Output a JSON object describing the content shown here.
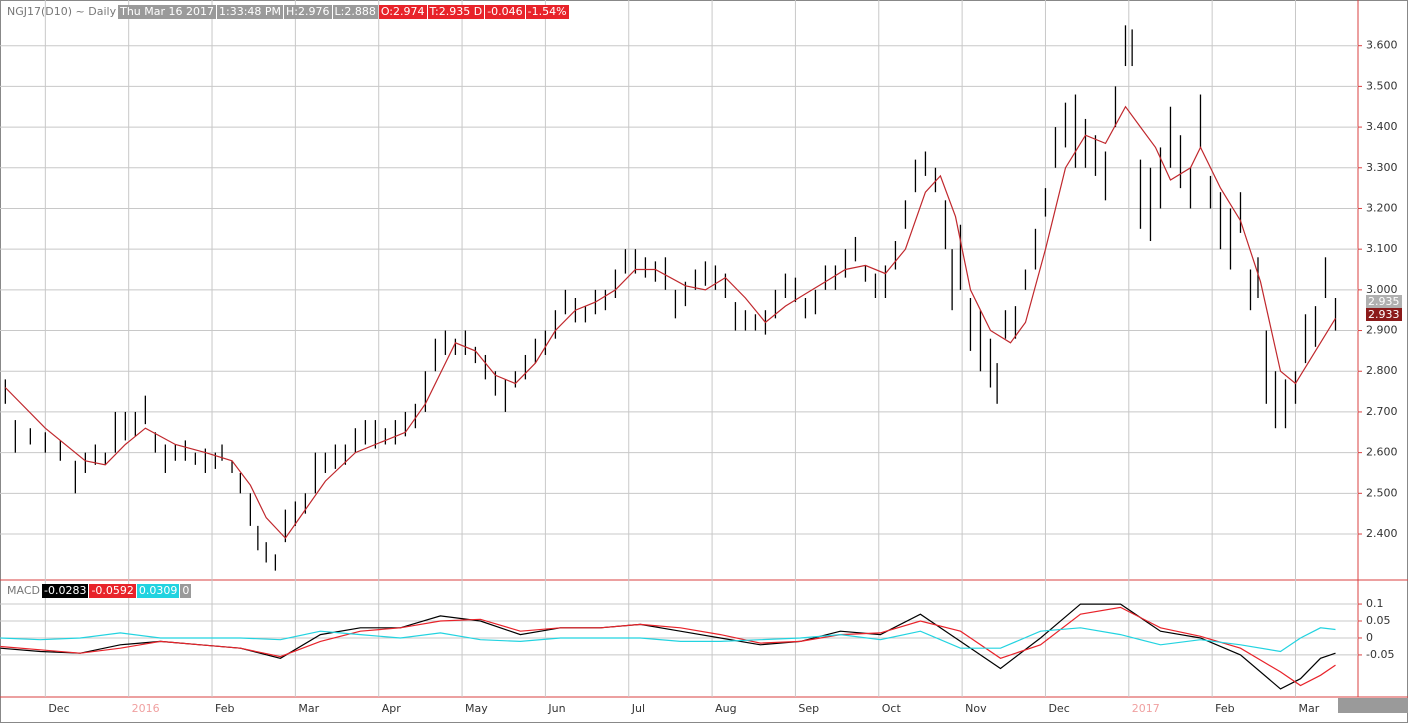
{
  "chart_data": [
    {
      "type": "ohlc",
      "title": "NGJ17(D10) ~ Daily",
      "header": [
        "Thu Mar 16 2017",
        "1:33:48 PM",
        "H:2.976",
        "L:2.888"
      ],
      "quote": [
        "O:2.974",
        "T:2.935 D",
        "-0.046",
        "-1.54%"
      ],
      "last_labels": [
        2.935,
        2.933
      ],
      "color": "#000000",
      "ma_color": "#c0282d",
      "xlim": [
        0.456,
        16.75
      ],
      "xticks": [
        {
          "value": 1,
          "label": "Dec"
        },
        {
          "value": 2,
          "label": "2016"
        },
        {
          "value": 3,
          "label": "Feb"
        },
        {
          "value": 4,
          "label": "Mar"
        },
        {
          "value": 5,
          "label": "Apr"
        },
        {
          "value": 6,
          "label": "May"
        },
        {
          "value": 7,
          "label": "Jun"
        },
        {
          "value": 8,
          "label": "Jul"
        },
        {
          "value": 9,
          "label": "Aug"
        },
        {
          "value": 10,
          "label": "Sep"
        },
        {
          "value": 11,
          "label": "Oct"
        },
        {
          "value": 12,
          "label": "Nov"
        },
        {
          "value": 13,
          "label": "Dec"
        },
        {
          "value": 14,
          "label": "2017"
        },
        {
          "value": 15,
          "label": "Feb"
        },
        {
          "value": 16,
          "label": "Mar"
        }
      ],
      "ylim": [
        2.287,
        3.7
      ],
      "yticks": [
        {
          "value": 2.4,
          "label": "2.400"
        },
        {
          "value": 2.5,
          "label": "2.500"
        },
        {
          "value": 2.6,
          "label": "2.600"
        },
        {
          "value": 2.7,
          "label": "2.700"
        },
        {
          "value": 2.8,
          "label": "2.800"
        },
        {
          "value": 2.9,
          "label": "2.900"
        },
        {
          "value": 3.0,
          "label": "3.000"
        },
        {
          "value": 3.1,
          "label": "3.100"
        },
        {
          "value": 3.2,
          "label": "3.200"
        },
        {
          "value": 3.3,
          "label": "3.300"
        },
        {
          "value": 3.4,
          "label": "3.400"
        },
        {
          "value": 3.5,
          "label": "3.500"
        },
        {
          "value": 3.6,
          "label": "3.600"
        }
      ],
      "grid": true,
      "x": [
        0.52,
        0.64,
        0.82,
        1.0,
        1.18,
        1.36,
        1.48,
        1.6,
        1.72,
        1.84,
        1.96,
        2.08,
        2.2,
        2.32,
        2.44,
        2.56,
        2.68,
        2.8,
        2.92,
        3.04,
        3.12,
        3.24,
        3.34,
        3.46,
        3.55,
        3.65,
        3.76,
        3.88,
        4.0,
        4.12,
        4.24,
        4.36,
        4.48,
        4.6,
        4.72,
        4.84,
        4.96,
        5.08,
        5.2,
        5.32,
        5.44,
        5.56,
        5.68,
        5.8,
        5.92,
        6.04,
        6.16,
        6.28,
        6.4,
        6.52,
        6.64,
        6.76,
        6.88,
        7.0,
        7.12,
        7.24,
        7.36,
        7.48,
        7.6,
        7.72,
        7.84,
        7.96,
        8.08,
        8.2,
        8.32,
        8.44,
        8.56,
        8.68,
        8.8,
        8.92,
        9.04,
        9.16,
        9.28,
        9.4,
        9.52,
        9.64,
        9.76,
        9.88,
        10.0,
        10.12,
        10.24,
        10.36,
        10.48,
        10.6,
        10.72,
        10.84,
        10.96,
        11.08,
        11.2,
        11.32,
        11.44,
        11.56,
        11.68,
        11.8,
        11.88,
        11.98,
        12.1,
        12.22,
        12.34,
        12.42,
        12.52,
        12.64,
        12.76,
        12.88,
        13.0,
        13.12,
        13.24,
        13.36,
        13.48,
        13.6,
        13.72,
        13.84,
        13.96,
        14.04,
        14.14,
        14.26,
        14.38,
        14.5,
        14.62,
        14.74,
        14.86,
        14.98,
        15.1,
        15.22,
        15.34,
        15.46,
        15.55,
        15.65,
        15.76,
        15.88,
        16.0,
        16.12,
        16.24,
        16.36,
        16.48
      ],
      "high": [
        2.78,
        2.68,
        2.66,
        2.65,
        2.63,
        2.58,
        2.6,
        2.62,
        2.6,
        2.7,
        2.7,
        2.7,
        2.74,
        2.65,
        2.62,
        2.62,
        2.63,
        2.6,
        2.61,
        2.6,
        2.62,
        2.58,
        2.55,
        2.5,
        2.42,
        2.38,
        2.35,
        2.46,
        2.48,
        2.5,
        2.6,
        2.6,
        2.62,
        2.62,
        2.66,
        2.68,
        2.68,
        2.66,
        2.68,
        2.7,
        2.72,
        2.8,
        2.88,
        2.9,
        2.88,
        2.9,
        2.86,
        2.84,
        2.8,
        2.78,
        2.8,
        2.84,
        2.88,
        2.9,
        2.95,
        3.0,
        2.98,
        2.96,
        3.0,
        3.0,
        3.05,
        3.1,
        3.1,
        3.08,
        3.07,
        3.08,
        3.0,
        3.02,
        3.05,
        3.07,
        3.06,
        3.04,
        2.97,
        2.95,
        2.94,
        2.95,
        3.0,
        3.04,
        3.03,
        2.98,
        3.0,
        3.06,
        3.06,
        3.1,
        3.13,
        3.06,
        3.04,
        3.06,
        3.12,
        3.22,
        3.32,
        3.34,
        3.3,
        3.22,
        3.1,
        3.16,
        2.98,
        2.95,
        2.88,
        2.82,
        2.95,
        2.96,
        3.05,
        3.15,
        3.25,
        3.4,
        3.46,
        3.48,
        3.42,
        3.38,
        3.34,
        3.5,
        3.65,
        3.64,
        3.32,
        3.3,
        3.35,
        3.45,
        3.38,
        3.3,
        3.48,
        3.28,
        3.24,
        3.2,
        3.24,
        3.05,
        3.08,
        2.9,
        2.8,
        2.78,
        2.8,
        2.94,
        2.96,
        3.08,
        2.98
      ],
      "low": [
        2.72,
        2.6,
        2.62,
        2.6,
        2.58,
        2.5,
        2.55,
        2.57,
        2.57,
        2.6,
        2.63,
        2.64,
        2.67,
        2.6,
        2.55,
        2.58,
        2.58,
        2.57,
        2.55,
        2.56,
        2.58,
        2.55,
        2.5,
        2.42,
        2.36,
        2.33,
        2.31,
        2.38,
        2.42,
        2.45,
        2.5,
        2.55,
        2.56,
        2.57,
        2.6,
        2.62,
        2.61,
        2.62,
        2.62,
        2.64,
        2.66,
        2.7,
        2.8,
        2.84,
        2.84,
        2.84,
        2.82,
        2.78,
        2.74,
        2.7,
        2.76,
        2.78,
        2.82,
        2.84,
        2.88,
        2.94,
        2.92,
        2.92,
        2.94,
        2.95,
        2.98,
        3.04,
        3.04,
        3.03,
        3.02,
        3.0,
        2.93,
        2.96,
        3.0,
        3.01,
        3.0,
        2.98,
        2.9,
        2.9,
        2.9,
        2.89,
        2.93,
        2.98,
        2.97,
        2.93,
        2.94,
        3.0,
        3.0,
        3.03,
        3.07,
        3.02,
        2.98,
        2.98,
        3.05,
        3.15,
        3.24,
        3.28,
        3.24,
        3.1,
        2.95,
        3.0,
        2.85,
        2.8,
        2.76,
        2.72,
        2.88,
        2.88,
        3.0,
        3.05,
        3.18,
        3.3,
        3.35,
        3.3,
        3.3,
        3.28,
        3.22,
        3.4,
        3.55,
        3.55,
        3.15,
        3.12,
        3.2,
        3.3,
        3.25,
        3.2,
        3.35,
        3.2,
        3.1,
        3.05,
        3.14,
        2.95,
        2.98,
        2.72,
        2.66,
        2.66,
        2.72,
        2.82,
        2.86,
        2.98,
        2.9
      ],
      "ma_x": [
        0.52,
        1.0,
        1.48,
        1.72,
        1.96,
        2.2,
        2.56,
        2.92,
        3.24,
        3.46,
        3.65,
        3.88,
        4.12,
        4.36,
        4.72,
        5.08,
        5.32,
        5.56,
        5.8,
        5.92,
        6.16,
        6.4,
        6.64,
        6.88,
        7.12,
        7.36,
        7.6,
        7.84,
        8.08,
        8.32,
        8.68,
        8.92,
        9.16,
        9.4,
        9.64,
        9.88,
        10.12,
        10.36,
        10.6,
        10.84,
        11.08,
        11.32,
        11.56,
        11.74,
        11.92,
        12.1,
        12.34,
        12.58,
        12.76,
        13.0,
        13.24,
        13.48,
        13.72,
        13.96,
        14.14,
        14.32,
        14.5,
        14.74,
        14.86,
        15.1,
        15.34,
        15.58,
        15.82,
        16.0,
        16.24,
        16.48
      ],
      "ma": [
        2.76,
        2.66,
        2.58,
        2.57,
        2.62,
        2.66,
        2.62,
        2.6,
        2.58,
        2.52,
        2.44,
        2.39,
        2.46,
        2.53,
        2.6,
        2.63,
        2.65,
        2.72,
        2.82,
        2.87,
        2.85,
        2.79,
        2.77,
        2.82,
        2.9,
        2.95,
        2.97,
        3.0,
        3.05,
        3.05,
        3.01,
        3.0,
        3.03,
        2.98,
        2.92,
        2.96,
        2.99,
        3.02,
        3.05,
        3.06,
        3.04,
        3.1,
        3.24,
        3.28,
        3.18,
        3.0,
        2.9,
        2.87,
        2.92,
        3.1,
        3.3,
        3.38,
        3.36,
        3.45,
        3.4,
        3.35,
        3.27,
        3.3,
        3.35,
        3.25,
        3.17,
        3.02,
        2.8,
        2.77,
        2.85,
        2.93
      ]
    },
    {
      "type": "line",
      "title": "MACD",
      "last_values": [
        -0.0283,
        -0.0592,
        0.0309
      ],
      "zero_label": 0,
      "xlim": [
        0.456,
        16.75
      ],
      "ylim": [
        -0.174,
        0.165
      ],
      "yticks": [
        0.1,
        0.05,
        0,
        -0.05
      ],
      "grid": true,
      "x": [
        0.46,
        0.94,
        1.42,
        1.9,
        2.38,
        2.86,
        3.34,
        3.82,
        4.3,
        4.78,
        5.26,
        5.74,
        6.22,
        6.7,
        7.18,
        7.66,
        8.14,
        8.62,
        9.1,
        9.58,
        10.06,
        10.54,
        11.02,
        11.5,
        11.98,
        12.46,
        12.94,
        13.42,
        13.9,
        14.38,
        14.86,
        15.34,
        15.82,
        16.06,
        16.3,
        16.48
      ],
      "series": [
        {
          "color": "#000000",
          "values": [
            -0.03,
            -0.04,
            -0.045,
            -0.02,
            -0.01,
            -0.02,
            -0.03,
            -0.06,
            0.01,
            0.03,
            0.03,
            0.065,
            0.05,
            0.01,
            0.03,
            0.03,
            0.04,
            0.02,
            0.0,
            -0.02,
            -0.01,
            0.02,
            0.01,
            0.07,
            -0.01,
            -0.09,
            0.0,
            0.1,
            0.1,
            0.02,
            0.0,
            -0.05,
            -0.15,
            -0.12,
            -0.06,
            -0.045
          ]
        },
        {
          "color": "#e8232a",
          "values": [
            -0.025,
            -0.035,
            -0.045,
            -0.03,
            -0.01,
            -0.02,
            -0.03,
            -0.055,
            -0.01,
            0.02,
            0.03,
            0.05,
            0.055,
            0.02,
            0.03,
            0.03,
            0.04,
            0.03,
            0.01,
            -0.015,
            -0.01,
            0.01,
            0.015,
            0.05,
            0.02,
            -0.06,
            -0.02,
            0.07,
            0.09,
            0.03,
            0.005,
            -0.03,
            -0.1,
            -0.14,
            -0.11,
            -0.08
          ]
        },
        {
          "color": "#22d3e0",
          "values": [
            0.0,
            -0.005,
            0.0,
            0.015,
            0.0,
            0.0,
            0.0,
            -0.005,
            0.02,
            0.01,
            0.0,
            0.015,
            -0.005,
            -0.01,
            0.0,
            0.0,
            0.0,
            -0.01,
            -0.01,
            -0.005,
            0.0,
            0.01,
            -0.005,
            0.02,
            -0.03,
            -0.03,
            0.02,
            0.03,
            0.01,
            -0.02,
            -0.005,
            -0.02,
            -0.04,
            0.0,
            0.03,
            0.025
          ]
        }
      ]
    }
  ]
}
